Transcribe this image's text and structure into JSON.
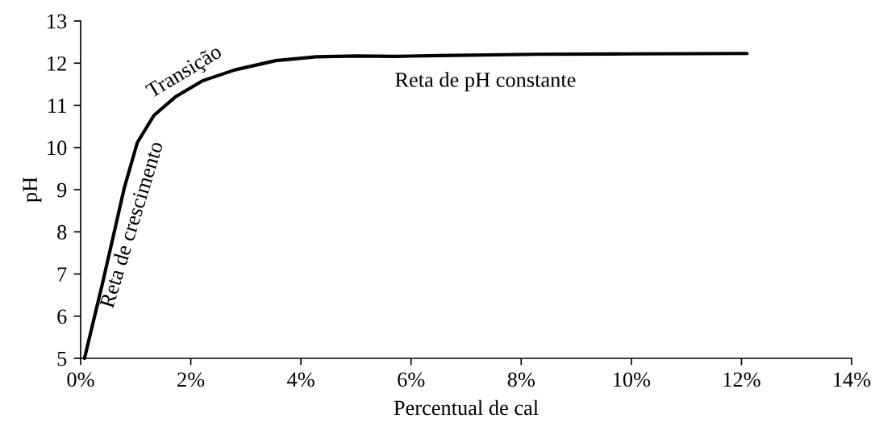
{
  "chart_data": {
    "type": "line",
    "xlabel": "Percentual de cal",
    "ylabel": "pH",
    "x": [
      0.07,
      0.39,
      0.59,
      0.79,
      1.03,
      1.33,
      1.72,
      2.21,
      2.8,
      3.54,
      4.28,
      5.01,
      5.71,
      6.5,
      8.27,
      10.0,
      12.1
    ],
    "series": [
      {
        "color": "#000000",
        "values": [
          5.0,
          6.74,
          7.88,
          9.03,
          10.12,
          10.76,
          11.2,
          11.58,
          11.84,
          12.06,
          12.15,
          12.17,
          12.16,
          12.18,
          12.21,
          12.22,
          12.23
        ]
      }
    ],
    "xlim": [
      0,
      14
    ],
    "xticks": [
      {
        "value": 0,
        "label": "0%"
      },
      {
        "value": 2,
        "label": "2%"
      },
      {
        "value": 4,
        "label": "4%"
      },
      {
        "value": 6,
        "label": "6%"
      },
      {
        "value": 8,
        "label": "8%"
      },
      {
        "value": 10,
        "label": "10%"
      },
      {
        "value": 12,
        "label": "12%"
      },
      {
        "value": 14,
        "label": "14%"
      }
    ],
    "ylim": [
      5,
      13
    ],
    "yticks": [
      5,
      6,
      7,
      8,
      9,
      10,
      11,
      12,
      13
    ],
    "annotations": [
      "Transição",
      "Reta de crescimento",
      "Reta de pH constante"
    ],
    "line_style": "solid"
  }
}
